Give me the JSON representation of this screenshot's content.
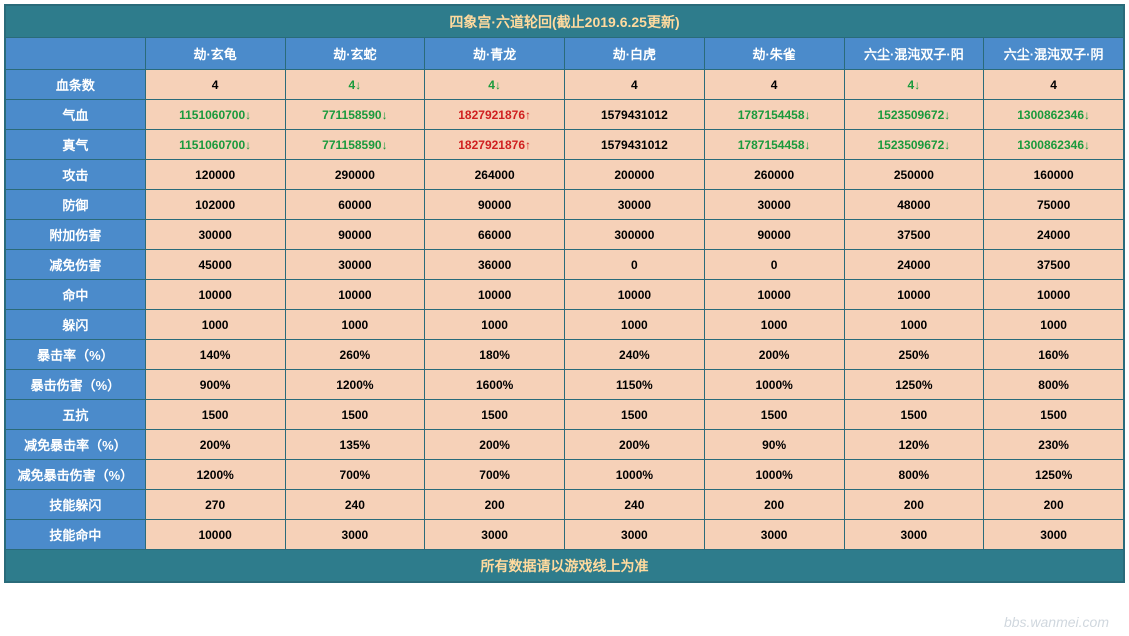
{
  "title": "四象宫·六道轮回(截止2019.6.25更新)",
  "footer": "所有数据请以游戏线上为准",
  "watermark": "bbs.wanmei.com",
  "colors": {
    "title_bg": "#2e7c8c",
    "title_fg": "#ffda9e",
    "header_bg": "#4b8bcb",
    "header_fg": "#ffffff",
    "cell_bg": "#f6d1b8",
    "border": "#2a6b7a",
    "up": "#d02020",
    "down": "#1a9a3c"
  },
  "columns": [
    "",
    "劫·玄龟",
    "劫·玄蛇",
    "劫·青龙",
    "劫·白虎",
    "劫·朱雀",
    "六尘·混沌双子·阳",
    "六尘·混沌双子·阴"
  ],
  "rows": [
    {
      "label": "血条数",
      "cells": [
        {
          "v": "4"
        },
        {
          "v": "4",
          "d": "down"
        },
        {
          "v": "4",
          "d": "down"
        },
        {
          "v": "4"
        },
        {
          "v": "4"
        },
        {
          "v": "4",
          "d": "down"
        },
        {
          "v": "4"
        }
      ]
    },
    {
      "label": "气血",
      "cells": [
        {
          "v": "1151060700",
          "d": "down"
        },
        {
          "v": "771158590",
          "d": "down"
        },
        {
          "v": "1827921876",
          "d": "up"
        },
        {
          "v": "1579431012"
        },
        {
          "v": "1787154458",
          "d": "down"
        },
        {
          "v": "1523509672",
          "d": "down"
        },
        {
          "v": "1300862346",
          "d": "down"
        }
      ]
    },
    {
      "label": "真气",
      "cells": [
        {
          "v": "1151060700",
          "d": "down"
        },
        {
          "v": "771158590",
          "d": "down"
        },
        {
          "v": "1827921876",
          "d": "up"
        },
        {
          "v": "1579431012"
        },
        {
          "v": "1787154458",
          "d": "down"
        },
        {
          "v": "1523509672",
          "d": "down"
        },
        {
          "v": "1300862346",
          "d": "down"
        }
      ]
    },
    {
      "label": "攻击",
      "cells": [
        {
          "v": "120000"
        },
        {
          "v": "290000"
        },
        {
          "v": "264000"
        },
        {
          "v": "200000"
        },
        {
          "v": "260000"
        },
        {
          "v": "250000"
        },
        {
          "v": "160000"
        }
      ]
    },
    {
      "label": "防御",
      "cells": [
        {
          "v": "102000"
        },
        {
          "v": "60000"
        },
        {
          "v": "90000"
        },
        {
          "v": "30000"
        },
        {
          "v": "30000"
        },
        {
          "v": "48000"
        },
        {
          "v": "75000"
        }
      ]
    },
    {
      "label": "附加伤害",
      "cells": [
        {
          "v": "30000"
        },
        {
          "v": "90000"
        },
        {
          "v": "66000"
        },
        {
          "v": "300000"
        },
        {
          "v": "90000"
        },
        {
          "v": "37500"
        },
        {
          "v": "24000"
        }
      ]
    },
    {
      "label": "减免伤害",
      "cells": [
        {
          "v": "45000"
        },
        {
          "v": "30000"
        },
        {
          "v": "36000"
        },
        {
          "v": "0"
        },
        {
          "v": "0"
        },
        {
          "v": "24000"
        },
        {
          "v": "37500"
        }
      ]
    },
    {
      "label": "命中",
      "cells": [
        {
          "v": "10000"
        },
        {
          "v": "10000"
        },
        {
          "v": "10000"
        },
        {
          "v": "10000"
        },
        {
          "v": "10000"
        },
        {
          "v": "10000"
        },
        {
          "v": "10000"
        }
      ]
    },
    {
      "label": "躲闪",
      "cells": [
        {
          "v": "1000"
        },
        {
          "v": "1000"
        },
        {
          "v": "1000"
        },
        {
          "v": "1000"
        },
        {
          "v": "1000"
        },
        {
          "v": "1000"
        },
        {
          "v": "1000"
        }
      ]
    },
    {
      "label": "暴击率（%）",
      "cells": [
        {
          "v": "140%"
        },
        {
          "v": "260%"
        },
        {
          "v": "180%"
        },
        {
          "v": "240%"
        },
        {
          "v": "200%"
        },
        {
          "v": "250%"
        },
        {
          "v": "160%"
        }
      ]
    },
    {
      "label": "暴击伤害（%）",
      "cells": [
        {
          "v": "900%"
        },
        {
          "v": "1200%"
        },
        {
          "v": "1600%"
        },
        {
          "v": "1150%"
        },
        {
          "v": "1000%"
        },
        {
          "v": "1250%"
        },
        {
          "v": "800%"
        }
      ]
    },
    {
      "label": "五抗",
      "cells": [
        {
          "v": "1500"
        },
        {
          "v": "1500"
        },
        {
          "v": "1500"
        },
        {
          "v": "1500"
        },
        {
          "v": "1500"
        },
        {
          "v": "1500"
        },
        {
          "v": "1500"
        }
      ]
    },
    {
      "label": "减免暴击率（%）",
      "cells": [
        {
          "v": "200%"
        },
        {
          "v": "135%"
        },
        {
          "v": "200%"
        },
        {
          "v": "200%"
        },
        {
          "v": "90%"
        },
        {
          "v": "120%"
        },
        {
          "v": "230%"
        }
      ]
    },
    {
      "label": "减免暴击伤害（%）",
      "cells": [
        {
          "v": "1200%"
        },
        {
          "v": "700%"
        },
        {
          "v": "700%"
        },
        {
          "v": "1000%"
        },
        {
          "v": "1000%"
        },
        {
          "v": "800%"
        },
        {
          "v": "1250%"
        }
      ]
    },
    {
      "label": "技能躲闪",
      "cells": [
        {
          "v": "270"
        },
        {
          "v": "240"
        },
        {
          "v": "200"
        },
        {
          "v": "240"
        },
        {
          "v": "200"
        },
        {
          "v": "200"
        },
        {
          "v": "200"
        }
      ]
    },
    {
      "label": "技能命中",
      "cells": [
        {
          "v": "10000"
        },
        {
          "v": "3000"
        },
        {
          "v": "3000"
        },
        {
          "v": "3000"
        },
        {
          "v": "3000"
        },
        {
          "v": "3000"
        },
        {
          "v": "3000"
        }
      ]
    }
  ]
}
